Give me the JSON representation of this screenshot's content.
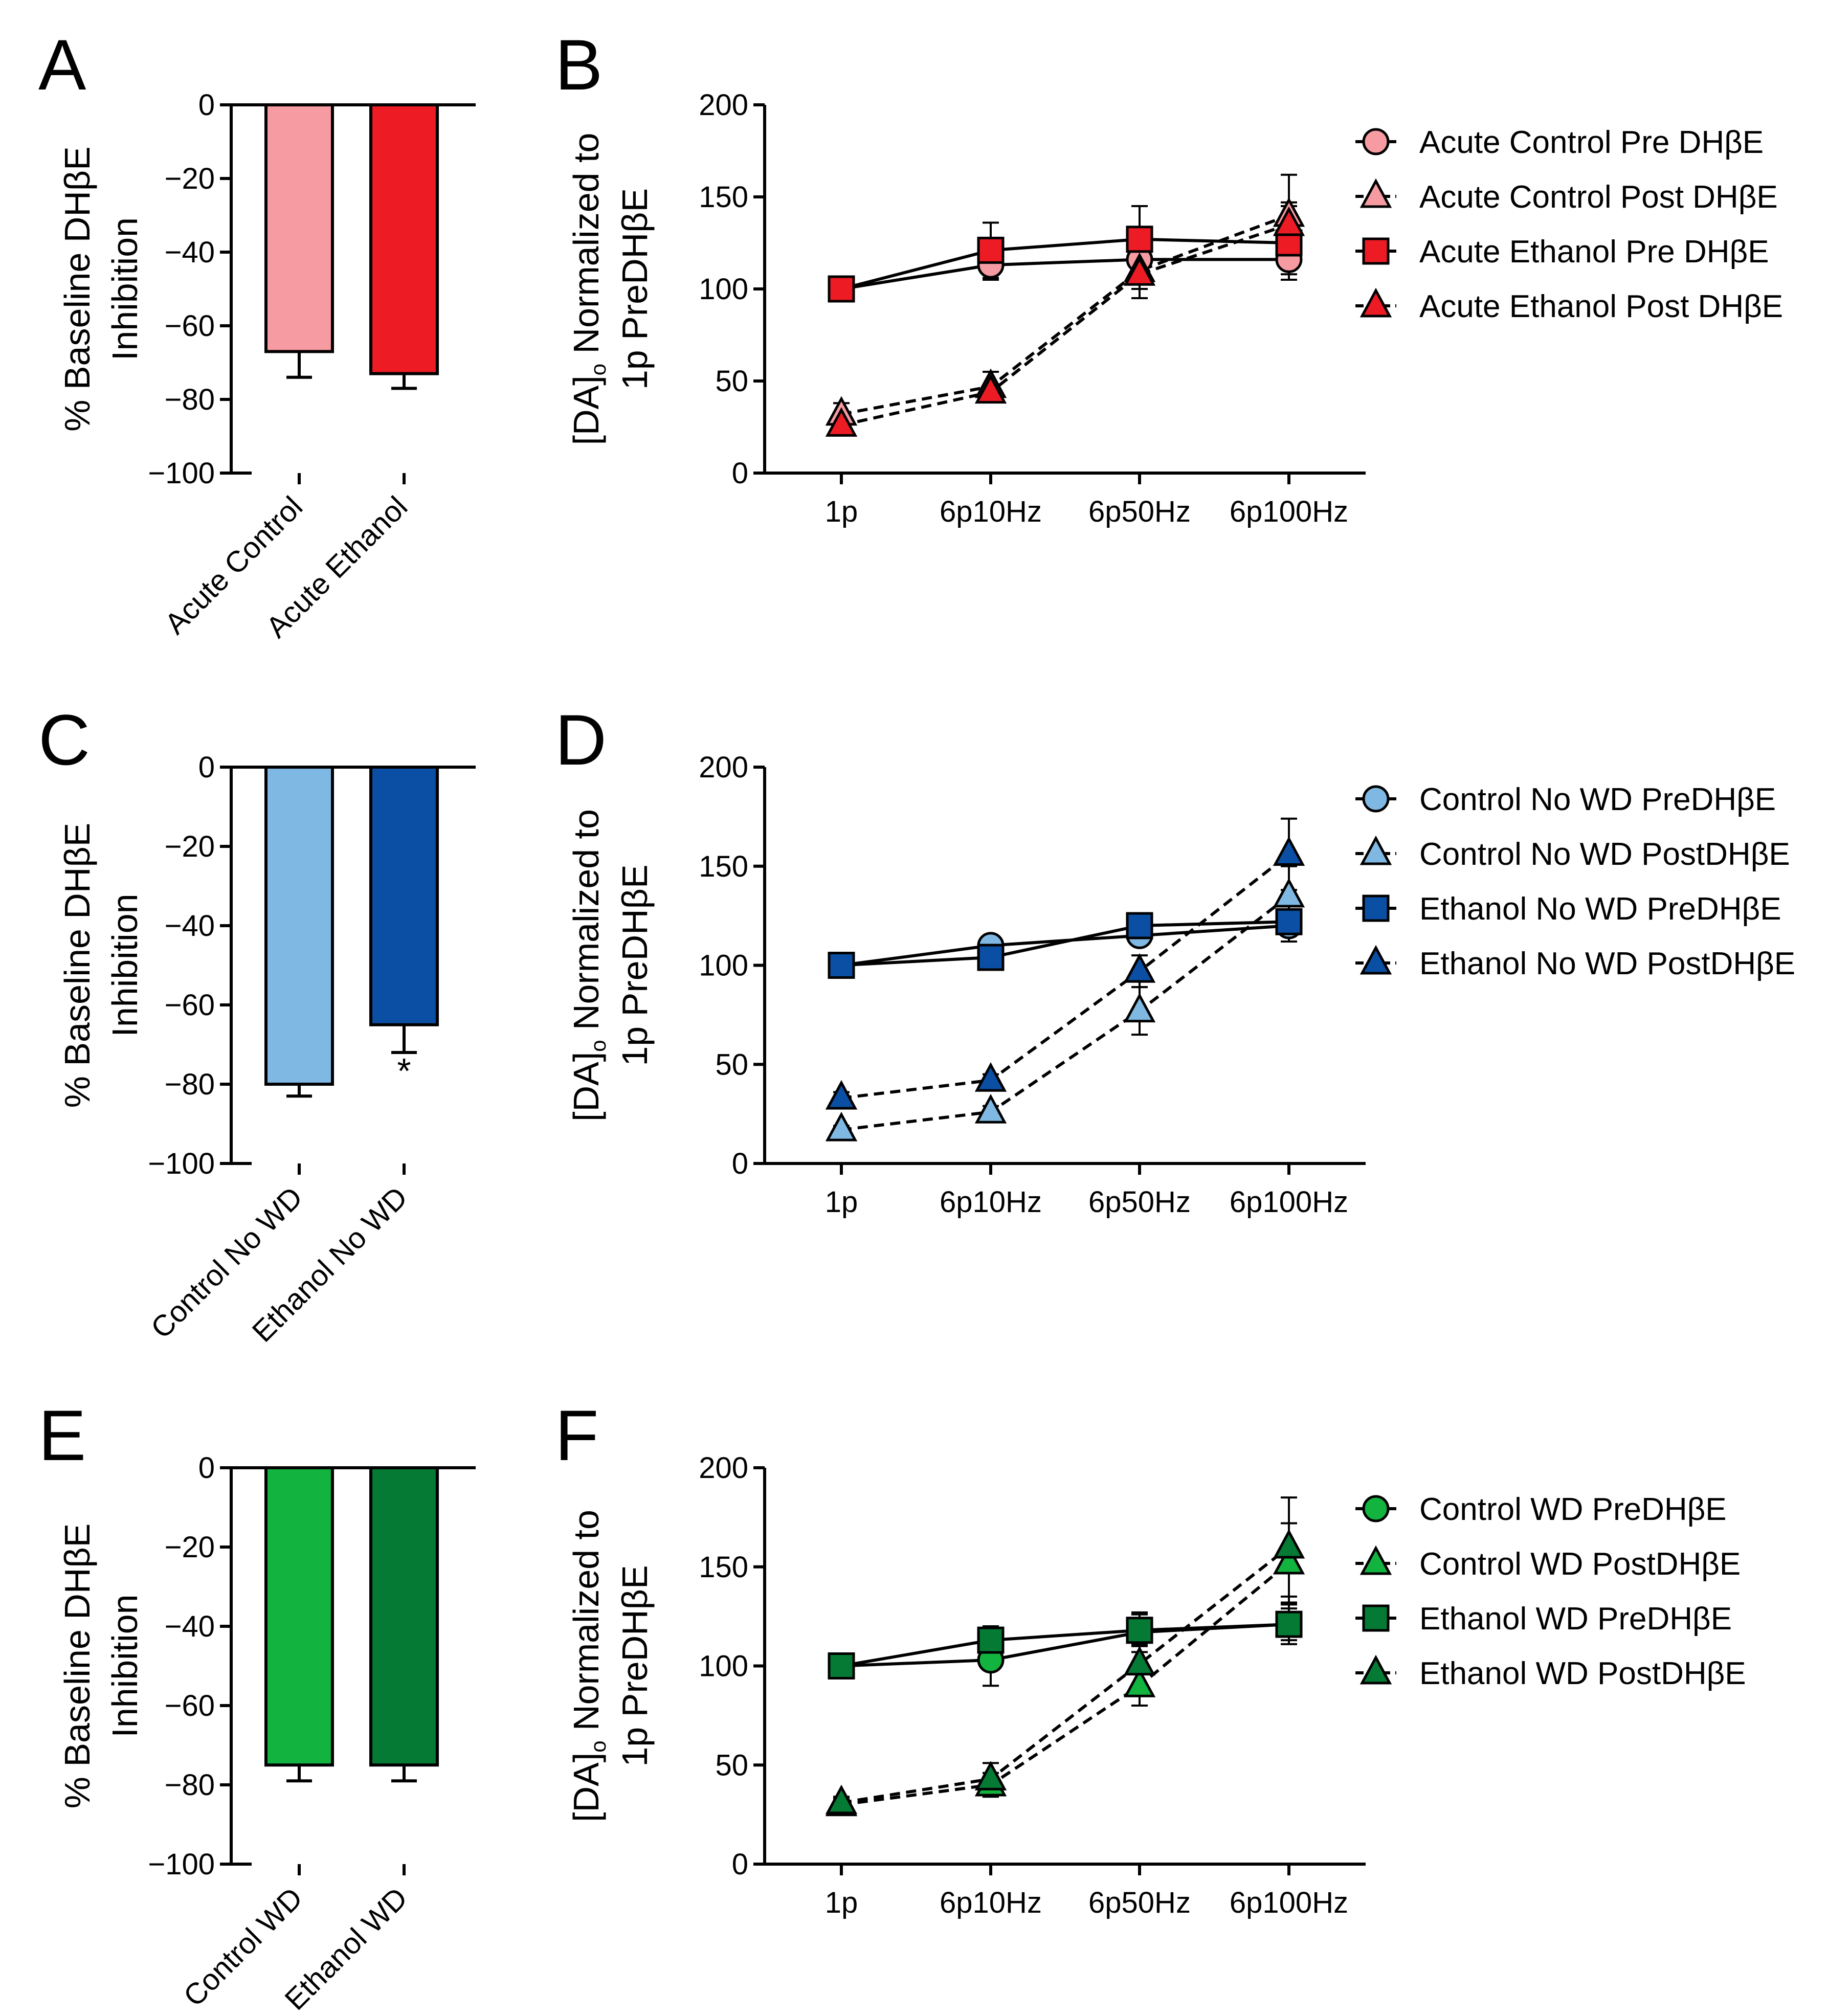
{
  "figure": {
    "panels": [
      "A",
      "B",
      "C",
      "D",
      "E",
      "F"
    ]
  },
  "chart_data": [
    {
      "panel": "A",
      "type": "bar",
      "ylabel": "% Baseline DHβE Inhibition",
      "ylim": [
        -100,
        0
      ],
      "yticks": [
        "0",
        "−20",
        "−40",
        "−60",
        "−80",
        "−100"
      ],
      "categories": [
        "Acute Control",
        "Acute Ethanol"
      ],
      "values": [
        -67,
        -73
      ],
      "errors": [
        7,
        4
      ],
      "colors": [
        "#f59ba1",
        "#ed1c24"
      ],
      "annotations": [
        "",
        ""
      ]
    },
    {
      "panel": "B",
      "type": "line",
      "ylabel": "[DA]o Normalized to 1p PreDHβE",
      "ylim": [
        0,
        200
      ],
      "yticks": [
        "0",
        "50",
        "100",
        "150",
        "200"
      ],
      "categories": [
        "1p",
        "6p10Hz",
        "6p50Hz",
        "6p100Hz"
      ],
      "series": [
        {
          "name": "Acute Control Pre DHβE",
          "marker": "circle",
          "dash": false,
          "color": "#f59ba1",
          "values": [
            100,
            113,
            116,
            116
          ],
          "errors": [
            0,
            8,
            5,
            8
          ]
        },
        {
          "name": "Acute Control Post DHβE",
          "marker": "triangle",
          "dash": true,
          "color": "#f59ba1",
          "values": [
            32,
            47,
            110,
            140
          ],
          "errors": [
            6,
            8,
            15,
            22
          ]
        },
        {
          "name": "Acute Ethanol Pre DHβE",
          "marker": "square",
          "dash": false,
          "color": "#ed1c24",
          "values": [
            100,
            121,
            127,
            125
          ],
          "errors": [
            0,
            15,
            18,
            20
          ]
        },
        {
          "name": "Acute Ethanol Post DHβE",
          "marker": "triangle",
          "dash": true,
          "color": "#ed1c24",
          "values": [
            26,
            44,
            108,
            135
          ],
          "errors": [
            4,
            4,
            8,
            12
          ]
        }
      ]
    },
    {
      "panel": "C",
      "type": "bar",
      "ylabel": "% Baseline DHβE Inhibition",
      "ylim": [
        -100,
        0
      ],
      "yticks": [
        "0",
        "−20",
        "−40",
        "−60",
        "−80",
        "−100"
      ],
      "categories": [
        "Control No WD",
        "Ethanol No WD"
      ],
      "values": [
        -80,
        -65
      ],
      "errors": [
        3,
        7
      ],
      "colors": [
        "#7fb8e2",
        "#0a4fa3"
      ],
      "annotations": [
        "",
        "*"
      ]
    },
    {
      "panel": "D",
      "type": "line",
      "ylabel": "[DA]o Normalized to 1p PreDHβE",
      "ylim": [
        0,
        200
      ],
      "yticks": [
        "0",
        "50",
        "100",
        "150",
        "200"
      ],
      "categories": [
        "1p",
        "6p10Hz",
        "6p50Hz",
        "6p100Hz"
      ],
      "series": [
        {
          "name": "Control No WD PreDHβE",
          "marker": "circle",
          "dash": false,
          "color": "#7fb8e2",
          "values": [
            100,
            110,
            115,
            120
          ],
          "errors": [
            0,
            3,
            5,
            8
          ]
        },
        {
          "name": "Control No WD PostDHβE",
          "marker": "triangle",
          "dash": true,
          "color": "#7fb8e2",
          "values": [
            17,
            26,
            77,
            135
          ],
          "errors": [
            2,
            3,
            12,
            15
          ]
        },
        {
          "name": "Ethanol No WD PreDHβE",
          "marker": "square",
          "dash": false,
          "color": "#0a4fa3",
          "values": [
            100,
            104,
            120,
            122
          ],
          "errors": [
            0,
            3,
            4,
            6
          ]
        },
        {
          "name": "Ethanol No WD PostDHβE",
          "marker": "triangle",
          "dash": true,
          "color": "#0a4fa3",
          "values": [
            33,
            42,
            97,
            156
          ],
          "errors": [
            3,
            3,
            8,
            18
          ]
        }
      ]
    },
    {
      "panel": "E",
      "type": "bar",
      "ylabel": "% Baseline DHβE Inhibition",
      "ylim": [
        -100,
        0
      ],
      "yticks": [
        "0",
        "−20",
        "−40",
        "−60",
        "−80",
        "−100"
      ],
      "categories": [
        "Control WD",
        "Ethanol WD"
      ],
      "values": [
        -75,
        -75
      ],
      "errors": [
        4,
        4
      ],
      "colors": [
        "#12b33f",
        "#047a35"
      ],
      "annotations": [
        "",
        ""
      ]
    },
    {
      "panel": "F",
      "type": "line",
      "ylabel": "[DA]o Normalized to 1p PreDHβE",
      "ylim": [
        0,
        200
      ],
      "yticks": [
        "0",
        "50",
        "100",
        "150",
        "200"
      ],
      "categories": [
        "1p",
        "6p10Hz",
        "6p50Hz",
        "6p100Hz"
      ],
      "series": [
        {
          "name": "Control WD PreDHβE",
          "marker": "circle",
          "dash": false,
          "color": "#12b33f",
          "values": [
            100,
            103,
            117,
            121
          ],
          "errors": [
            0,
            13,
            10,
            10
          ]
        },
        {
          "name": "Control WD PostDHβE",
          "marker": "triangle",
          "dash": true,
          "color": "#12b33f",
          "values": [
            30,
            40,
            90,
            152
          ],
          "errors": [
            3,
            6,
            10,
            20
          ]
        },
        {
          "name": "Ethanol WD PreDHβE",
          "marker": "square",
          "dash": false,
          "color": "#047a35",
          "values": [
            100,
            113,
            118,
            121
          ],
          "errors": [
            0,
            7,
            8,
            8
          ]
        },
        {
          "name": "Ethanol WD PostDHβE",
          "marker": "triangle",
          "dash": true,
          "color": "#047a35",
          "values": [
            31,
            43,
            101,
            160
          ],
          "errors": [
            3,
            8,
            10,
            25
          ]
        }
      ]
    }
  ]
}
